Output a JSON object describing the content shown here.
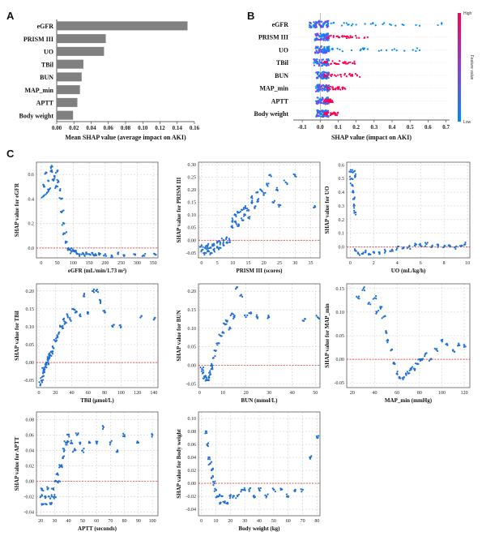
{
  "colors": {
    "bar": "#808080",
    "dot": "#1f6fd6",
    "ref": "#e02020",
    "grid": "#c8c8c8",
    "high": "#ff0052",
    "low": "#008afb"
  },
  "panels": {
    "a": "A",
    "b": "B",
    "c": "C"
  },
  "chart_data": [
    {
      "id": "A",
      "type": "bar",
      "orientation": "horizontal",
      "categories": [
        "eGFR",
        "PRISM III",
        "UO",
        "TBil",
        "BUN",
        "MAP_min",
        "APTT",
        "Body weight"
      ],
      "values": [
        0.152,
        0.057,
        0.055,
        0.031,
        0.029,
        0.027,
        0.024,
        0.019
      ],
      "xlabel": "Mean SHAP value (average impact on AKI)",
      "xlim": [
        0,
        0.16
      ],
      "xticks": [
        "0.00",
        "0.02",
        "0.04",
        "0.06",
        "0.08",
        "0.10",
        "0.12",
        "0.14",
        "0.16"
      ]
    },
    {
      "id": "B",
      "type": "scatter",
      "subtype": "beeswarm",
      "categories": [
        "eGFR",
        "PRISM III",
        "UO",
        "TBil",
        "BUN",
        "MAP_min",
        "APTT",
        "Body weight"
      ],
      "ranges": [
        [
          -0.1,
          0.68
        ],
        [
          -0.05,
          0.28
        ],
        [
          -0.05,
          0.58
        ],
        [
          -0.06,
          0.2
        ],
        [
          -0.04,
          0.22
        ],
        [
          -0.04,
          0.15
        ],
        [
          -0.04,
          0.07
        ],
        [
          -0.04,
          0.1
        ]
      ],
      "xlabel": "SHAP value (impact on AKI)",
      "xlim": [
        -0.15,
        0.72
      ],
      "xticks": [
        "-0.1",
        "0.0",
        "0.1",
        "0.2",
        "0.3",
        "0.4",
        "0.5",
        "0.6",
        "0.7"
      ],
      "colorbar": {
        "label": "Feature value",
        "high": "High",
        "low": "Low"
      }
    },
    {
      "id": "C1",
      "type": "scatter",
      "xlabel": "eGFR (mL/min/1.73 m²)",
      "ylabel": "SHAP value for eGFR",
      "xlim": [
        -15,
        365
      ],
      "ylim": [
        -0.08,
        0.7
      ],
      "xticks": [
        "0",
        "50",
        "100",
        "150",
        "200",
        "250",
        "300",
        "350"
      ],
      "yticks": [
        "0.0",
        "0.2",
        "0.4",
        "0.6"
      ],
      "points": [
        [
          6,
          0.42
        ],
        [
          10,
          0.5
        ],
        [
          14,
          0.61
        ],
        [
          18,
          0.45
        ],
        [
          22,
          0.55
        ],
        [
          26,
          0.48
        ],
        [
          30,
          0.66
        ],
        [
          34,
          0.62
        ],
        [
          38,
          0.56
        ],
        [
          42,
          0.58
        ],
        [
          46,
          0.5
        ],
        [
          50,
          0.63
        ],
        [
          54,
          0.54
        ],
        [
          58,
          0.47
        ],
        [
          62,
          0.4
        ],
        [
          66,
          0.3
        ],
        [
          70,
          0.2
        ],
        [
          74,
          0.12
        ],
        [
          80,
          0.05
        ],
        [
          85,
          0.0
        ],
        [
          90,
          -0.01
        ],
        [
          95,
          -0.03
        ],
        [
          100,
          -0.02
        ],
        [
          105,
          -0.03
        ],
        [
          110,
          -0.04
        ],
        [
          120,
          -0.05
        ],
        [
          130,
          -0.04
        ],
        [
          140,
          -0.05
        ],
        [
          150,
          -0.05
        ],
        [
          160,
          -0.04
        ],
        [
          170,
          -0.06
        ],
        [
          180,
          -0.05
        ],
        [
          200,
          -0.05
        ],
        [
          220,
          -0.06
        ],
        [
          240,
          -0.05
        ],
        [
          260,
          -0.06
        ],
        [
          290,
          -0.05
        ],
        [
          320,
          -0.06
        ],
        [
          355,
          -0.05
        ]
      ]
    },
    {
      "id": "C2",
      "type": "scatter",
      "xlabel": "PRISM III (scores)",
      "ylabel": "SHAP value for PRISM III",
      "xlim": [
        -1,
        38
      ],
      "ylim": [
        -0.07,
        0.31
      ],
      "xticks": [
        "0",
        "5",
        "10",
        "15",
        "20",
        "25",
        "30",
        "35"
      ],
      "yticks": [
        "-0.05",
        "0.00",
        "0.05",
        "0.10",
        "0.15",
        "0.20",
        "0.25",
        "0.30"
      ],
      "points": [
        [
          0,
          -0.02
        ],
        [
          0,
          -0.04
        ],
        [
          1,
          -0.05
        ],
        [
          1,
          -0.03
        ],
        [
          2,
          -0.04
        ],
        [
          2,
          -0.02
        ],
        [
          3,
          -0.05
        ],
        [
          3,
          -0.03
        ],
        [
          4,
          -0.04
        ],
        [
          4,
          -0.02
        ],
        [
          5,
          -0.03
        ],
        [
          5,
          -0.01
        ],
        [
          6,
          -0.03
        ],
        [
          6,
          -0.01
        ],
        [
          7,
          -0.02
        ],
        [
          7,
          0.0
        ],
        [
          8,
          -0.01
        ],
        [
          8,
          0.01
        ],
        [
          9,
          0.0
        ],
        [
          10,
          0.05
        ],
        [
          10,
          0.08
        ],
        [
          11,
          0.07
        ],
        [
          11,
          0.1
        ],
        [
          12,
          0.06
        ],
        [
          12,
          0.11
        ],
        [
          13,
          0.08
        ],
        [
          13,
          0.12
        ],
        [
          14,
          0.1
        ],
        [
          14,
          0.13
        ],
        [
          15,
          0.12
        ],
        [
          15,
          0.09
        ],
        [
          16,
          0.15
        ],
        [
          16,
          0.17
        ],
        [
          17,
          0.13
        ],
        [
          18,
          0.19
        ],
        [
          18,
          0.16
        ],
        [
          19,
          0.2
        ],
        [
          20,
          0.18
        ],
        [
          21,
          0.22
        ],
        [
          22,
          0.26
        ],
        [
          23,
          0.15
        ],
        [
          24,
          0.2
        ],
        [
          25,
          0.14
        ],
        [
          27,
          0.23
        ],
        [
          30,
          0.26
        ],
        [
          36,
          0.13
        ]
      ]
    },
    {
      "id": "C3",
      "type": "scatter",
      "xlabel": "UO (mL/kg/h)",
      "ylabel": "SHAP value for UO",
      "xlim": [
        -0.3,
        10.2
      ],
      "ylim": [
        -0.08,
        0.62
      ],
      "xticks": [
        "0",
        "2",
        "4",
        "6",
        "8",
        "10"
      ],
      "yticks": [
        "0.0",
        "0.1",
        "0.2",
        "0.3",
        "0.4",
        "0.5",
        "0.6"
      ],
      "points": [
        [
          0.05,
          0.55
        ],
        [
          0.1,
          0.5
        ],
        [
          0.15,
          0.45
        ],
        [
          0.2,
          0.4
        ],
        [
          0.25,
          0.35
        ],
        [
          0.3,
          0.3
        ],
        [
          0.35,
          0.25
        ],
        [
          0.3,
          0.55
        ],
        [
          0.4,
          0.52
        ],
        [
          0.5,
          -0.03
        ],
        [
          0.7,
          -0.05
        ],
        [
          1.0,
          -0.05
        ],
        [
          1.3,
          -0.04
        ],
        [
          1.6,
          -0.05
        ],
        [
          2.0,
          -0.04
        ],
        [
          2.5,
          -0.04
        ],
        [
          3.0,
          -0.03
        ],
        [
          3.5,
          -0.03
        ],
        [
          4.0,
          -0.01
        ],
        [
          4.5,
          -0.01
        ],
        [
          5.0,
          0.0
        ],
        [
          5.5,
          0.01
        ],
        [
          6.0,
          0.01
        ],
        [
          6.5,
          0.02
        ],
        [
          7.0,
          0.01
        ],
        [
          7.5,
          0.01
        ],
        [
          8.0,
          0.0
        ],
        [
          8.5,
          0.01
        ],
        [
          9.0,
          0.0
        ],
        [
          9.5,
          0.01
        ],
        [
          9.8,
          0.02
        ]
      ]
    },
    {
      "id": "C4",
      "type": "scatter",
      "xlabel": "TBil (μmol/L)",
      "ylabel": "SHAP value for TBil",
      "xlim": [
        -3,
        145
      ],
      "ylim": [
        -0.07,
        0.22
      ],
      "xticks": [
        "0",
        "20",
        "40",
        "60",
        "80",
        "100",
        "120",
        "140"
      ],
      "yticks": [
        "-0.05",
        "0.00",
        "0.05",
        "0.10",
        "0.15",
        "0.20"
      ],
      "points": [
        [
          2,
          -0.06
        ],
        [
          3,
          -0.05
        ],
        [
          4,
          -0.04
        ],
        [
          5,
          -0.03
        ],
        [
          6,
          -0.02
        ],
        [
          7,
          -0.02
        ],
        [
          8,
          -0.01
        ],
        [
          9,
          0.0
        ],
        [
          10,
          0.0
        ],
        [
          11,
          0.01
        ],
        [
          12,
          0.01
        ],
        [
          13,
          0.02
        ],
        [
          14,
          0.02
        ],
        [
          15,
          0.03
        ],
        [
          16,
          0.03
        ],
        [
          18,
          0.04
        ],
        [
          20,
          0.06
        ],
        [
          22,
          0.07
        ],
        [
          24,
          0.08
        ],
        [
          26,
          0.1
        ],
        [
          28,
          0.1
        ],
        [
          30,
          0.12
        ],
        [
          32,
          0.11
        ],
        [
          35,
          0.13
        ],
        [
          38,
          0.12
        ],
        [
          42,
          0.15
        ],
        [
          45,
          0.14
        ],
        [
          50,
          0.13
        ],
        [
          55,
          0.19
        ],
        [
          60,
          0.14
        ],
        [
          66,
          0.2
        ],
        [
          70,
          0.2
        ],
        [
          75,
          0.17
        ],
        [
          80,
          0.14
        ],
        [
          90,
          0.1
        ],
        [
          100,
          0.1
        ],
        [
          125,
          0.13
        ],
        [
          140,
          0.12
        ]
      ]
    },
    {
      "id": "C5",
      "type": "scatter",
      "xlabel": "BUN (mmol/L)",
      "ylabel": "SHAP value for BUN",
      "xlim": [
        -0.5,
        52
      ],
      "ylim": [
        -0.06,
        0.22
      ],
      "xticks": [
        "0",
        "10",
        "20",
        "30",
        "40",
        "50"
      ],
      "yticks": [
        "-0.05",
        "0.00",
        "0.05",
        "0.10",
        "0.15",
        "0.20"
      ],
      "points": [
        [
          1,
          -0.01
        ],
        [
          1.5,
          -0.02
        ],
        [
          2,
          -0.03
        ],
        [
          2.5,
          -0.03
        ],
        [
          3,
          -0.04
        ],
        [
          3.5,
          -0.04
        ],
        [
          4,
          -0.03
        ],
        [
          4.5,
          -0.02
        ],
        [
          5,
          -0.01
        ],
        [
          5.5,
          0.0
        ],
        [
          6,
          0.02
        ],
        [
          7,
          0.04
        ],
        [
          8,
          0.06
        ],
        [
          9,
          0.08
        ],
        [
          10,
          0.09
        ],
        [
          11,
          0.11
        ],
        [
          12,
          0.12
        ],
        [
          13,
          0.1
        ],
        [
          14,
          0.14
        ],
        [
          15,
          0.13
        ],
        [
          16,
          0.21
        ],
        [
          18,
          0.19
        ],
        [
          20,
          0.13
        ],
        [
          22,
          0.14
        ],
        [
          25,
          0.13
        ],
        [
          30,
          0.13
        ],
        [
          45,
          0.12
        ],
        [
          51,
          0.13
        ]
      ]
    },
    {
      "id": "C6",
      "type": "scatter",
      "xlabel": "MAP_min (mmHg)",
      "ylabel": "SHAP value for MAP_min",
      "xlim": [
        15,
        125
      ],
      "ylim": [
        -0.06,
        0.16
      ],
      "xticks": [
        "20",
        "40",
        "60",
        "80",
        "100",
        "120"
      ],
      "yticks": [
        "-0.05",
        "0.00",
        "0.05",
        "0.10",
        "0.15"
      ],
      "points": [
        [
          25,
          0.13
        ],
        [
          30,
          0.15
        ],
        [
          35,
          0.12
        ],
        [
          40,
          0.13
        ],
        [
          42,
          0.1
        ],
        [
          45,
          0.11
        ],
        [
          48,
          0.09
        ],
        [
          50,
          0.06
        ],
        [
          52,
          0.04
        ],
        [
          55,
          0.02
        ],
        [
          58,
          -0.01
        ],
        [
          60,
          -0.03
        ],
        [
          62,
          -0.04
        ],
        [
          65,
          -0.04
        ],
        [
          68,
          -0.03
        ],
        [
          70,
          -0.03
        ],
        [
          72,
          -0.02
        ],
        [
          75,
          -0.02
        ],
        [
          78,
          -0.01
        ],
        [
          80,
          0.0
        ],
        [
          82,
          0.0
        ],
        [
          85,
          0.01
        ],
        [
          90,
          0.0
        ],
        [
          95,
          0.02
        ],
        [
          100,
          0.04
        ],
        [
          105,
          0.03
        ],
        [
          110,
          0.02
        ],
        [
          115,
          0.03
        ],
        [
          120,
          0.03
        ]
      ]
    },
    {
      "id": "C7",
      "type": "scatter",
      "xlabel": "APTT (seconds)",
      "ylabel": "SHAP value for APTT",
      "xlim": [
        17,
        104
      ],
      "ylim": [
        -0.045,
        0.09
      ],
      "xticks": [
        "20",
        "30",
        "40",
        "50",
        "60",
        "70",
        "80",
        "90",
        "100"
      ],
      "yticks": [
        "-0.04",
        "-0.02",
        "0.00",
        "0.02",
        "0.04",
        "0.06",
        "0.08"
      ],
      "points": [
        [
          20,
          -0.02
        ],
        [
          21,
          -0.01
        ],
        [
          22,
          -0.03
        ],
        [
          23,
          -0.02
        ],
        [
          24,
          -0.03
        ],
        [
          25,
          -0.01
        ],
        [
          26,
          -0.02
        ],
        [
          27,
          -0.03
        ],
        [
          28,
          -0.02
        ],
        [
          29,
          -0.01
        ],
        [
          30,
          -0.02
        ],
        [
          31,
          0.0
        ],
        [
          32,
          0.01
        ],
        [
          33,
          0.0
        ],
        [
          34,
          0.02
        ],
        [
          35,
          0.02
        ],
        [
          36,
          0.03
        ],
        [
          37,
          0.04
        ],
        [
          38,
          0.05
        ],
        [
          39,
          0.05
        ],
        [
          40,
          0.06
        ],
        [
          42,
          0.05
        ],
        [
          44,
          0.04
        ],
        [
          46,
          0.06
        ],
        [
          48,
          0.05
        ],
        [
          50,
          0.04
        ],
        [
          55,
          0.05
        ],
        [
          60,
          0.05
        ],
        [
          65,
          0.07
        ],
        [
          70,
          0.05
        ],
        [
          75,
          0.04
        ],
        [
          80,
          0.06
        ],
        [
          90,
          0.05
        ],
        [
          100,
          0.06
        ]
      ]
    },
    {
      "id": "C8",
      "type": "scatter",
      "xlabel": "Body weight (kg)",
      "ylabel": "SHAP value for Body weight",
      "xlim": [
        -2,
        82
      ],
      "ylim": [
        -0.05,
        0.11
      ],
      "xticks": [
        "0",
        "10",
        "20",
        "30",
        "40",
        "50",
        "60",
        "70",
        "80"
      ],
      "yticks": [
        "-0.04",
        "-0.02",
        "0.00",
        "0.02",
        "0.04",
        "0.06",
        "0.08",
        "0.10"
      ],
      "points": [
        [
          3,
          0.08
        ],
        [
          4,
          0.06
        ],
        [
          5,
          0.04
        ],
        [
          6,
          0.03
        ],
        [
          7,
          0.02
        ],
        [
          8,
          0.01
        ],
        [
          9,
          0.0
        ],
        [
          10,
          -0.01
        ],
        [
          11,
          -0.02
        ],
        [
          12,
          -0.02
        ],
        [
          13,
          -0.03
        ],
        [
          14,
          -0.02
        ],
        [
          16,
          -0.03
        ],
        [
          18,
          -0.03
        ],
        [
          20,
          -0.02
        ],
        [
          22,
          -0.02
        ],
        [
          25,
          -0.02
        ],
        [
          28,
          -0.01
        ],
        [
          30,
          -0.01
        ],
        [
          33,
          -0.01
        ],
        [
          36,
          -0.02
        ],
        [
          40,
          -0.01
        ],
        [
          45,
          -0.02
        ],
        [
          50,
          -0.01
        ],
        [
          55,
          -0.01
        ],
        [
          60,
          -0.02
        ],
        [
          65,
          -0.01
        ],
        [
          70,
          -0.01
        ],
        [
          75,
          0.04
        ],
        [
          80,
          0.07
        ]
      ]
    }
  ]
}
